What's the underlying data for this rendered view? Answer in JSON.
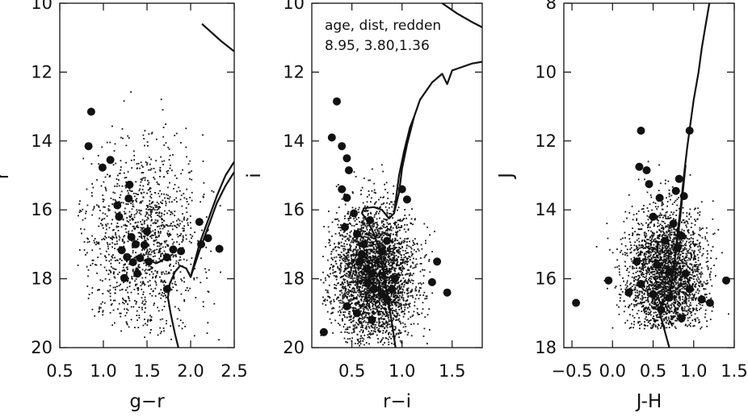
{
  "chart_data": [
    {
      "type": "scatter",
      "xlabel": "g−r",
      "ylabel": "r",
      "xlim": [
        0.5,
        2.5
      ],
      "ylim": [
        20,
        10
      ],
      "xticks": [
        "0.5",
        "1.0",
        "1.5",
        "2.0",
        "2.5"
      ],
      "xtick_values": [
        0.5,
        1.0,
        1.5,
        2.0,
        2.5
      ],
      "yticks": [
        "10",
        "12",
        "14",
        "16",
        "18",
        "20"
      ],
      "ytick_values": [
        10,
        12,
        14,
        16,
        18,
        20
      ],
      "annotation": [],
      "series": [
        {
          "kind": "members",
          "points": [
            [
              0.86,
              13.15
            ],
            [
              0.83,
              14.15
            ],
            [
              0.99,
              14.77
            ],
            [
              1.08,
              14.55
            ],
            [
              1.3,
              15.27
            ],
            [
              1.29,
              15.67
            ],
            [
              1.16,
              15.87
            ],
            [
              1.18,
              16.2
            ],
            [
              1.5,
              16.63
            ],
            [
              1.32,
              16.79
            ],
            [
              1.37,
              17.0
            ],
            [
              1.47,
              17.02
            ],
            [
              1.21,
              17.17
            ],
            [
              1.27,
              17.37
            ],
            [
              1.42,
              17.4
            ],
            [
              1.34,
              17.52
            ],
            [
              1.52,
              17.5
            ],
            [
              1.73,
              17.38
            ],
            [
              1.89,
              17.2
            ],
            [
              1.8,
              17.15
            ],
            [
              2.1,
              16.35
            ],
            [
              2.2,
              16.82
            ],
            [
              2.12,
              17.0
            ],
            [
              2.33,
              17.13
            ],
            [
              1.24,
              17.98
            ],
            [
              1.39,
              17.85
            ],
            [
              1.73,
              18.3
            ]
          ]
        },
        {
          "kind": "field",
          "stats": {
            "n": 1300,
            "x": [
              1.45,
              0.32
            ],
            "y": [
              16.9,
              1.35
            ],
            "xr": [
              0.7,
              2.4
            ],
            "yr": [
              12.5,
              19.8
            ],
            "seed": 11
          }
        }
      ],
      "isochrone": [
        [
          [
            1.93,
            20.7
          ],
          [
            1.88,
            20.2
          ],
          [
            1.82,
            19.6
          ],
          [
            1.77,
            19.0
          ],
          [
            1.74,
            18.55
          ],
          [
            1.76,
            18.15
          ],
          [
            1.82,
            17.8
          ],
          [
            1.88,
            17.62
          ],
          [
            1.95,
            17.7
          ],
          [
            2.0,
            17.95
          ],
          [
            2.1,
            17.0
          ],
          [
            2.2,
            16.3
          ],
          [
            2.3,
            15.6
          ],
          [
            2.4,
            15.0
          ],
          [
            2.5,
            14.6
          ]
        ],
        [
          [
            2.0,
            17.95
          ],
          [
            2.1,
            17.2
          ],
          [
            2.2,
            16.5
          ],
          [
            2.3,
            15.8
          ],
          [
            2.4,
            15.3
          ],
          [
            2.5,
            14.9
          ]
        ],
        [
          [
            1.55,
            17.48
          ],
          [
            1.6,
            17.55
          ],
          [
            1.65,
            17.5
          ],
          [
            1.72,
            17.38
          ]
        ],
        [
          [
            2.13,
            10.6
          ],
          [
            2.35,
            11.1
          ],
          [
            2.5,
            11.4
          ]
        ]
      ]
    },
    {
      "type": "scatter",
      "xlabel": "r−i",
      "ylabel": "i",
      "xlim": [
        0.1,
        1.8
      ],
      "ylim": [
        20,
        10
      ],
      "xticks": [
        "0.5",
        "1.0",
        "1.5"
      ],
      "xtick_values": [
        0.5,
        1.0,
        1.5
      ],
      "yticks": [
        "10",
        "12",
        "14",
        "16",
        "18",
        "20"
      ],
      "ytick_values": [
        10,
        12,
        14,
        16,
        18,
        20
      ],
      "annotation": [
        "age, dist, redden",
        "8.95, 3.80,1.36"
      ],
      "series": [
        {
          "kind": "members",
          "points": [
            [
              0.35,
              12.85
            ],
            [
              0.3,
              13.9
            ],
            [
              0.4,
              14.15
            ],
            [
              0.45,
              14.5
            ],
            [
              0.47,
              14.85
            ],
            [
              0.4,
              15.4
            ],
            [
              0.45,
              15.65
            ],
            [
              0.52,
              16.1
            ],
            [
              0.43,
              16.5
            ],
            [
              0.55,
              16.7
            ],
            [
              0.62,
              17.0
            ],
            [
              0.6,
              17.3
            ],
            [
              0.58,
              17.5
            ],
            [
              0.65,
              17.7
            ],
            [
              0.7,
              17.85
            ],
            [
              0.66,
              18.1
            ],
            [
              0.72,
              18.3
            ],
            [
              0.8,
              18.45
            ],
            [
              0.85,
              18.6
            ],
            [
              0.9,
              18.3
            ],
            [
              0.8,
              17.2
            ],
            [
              0.85,
              16.9
            ],
            [
              0.68,
              16.3
            ],
            [
              1.0,
              15.4
            ],
            [
              1.05,
              15.7
            ],
            [
              1.35,
              17.5
            ],
            [
              1.3,
              18.1
            ],
            [
              1.45,
              18.4
            ],
            [
              0.55,
              19.0
            ],
            [
              0.45,
              18.8
            ],
            [
              0.22,
              19.55
            ],
            [
              0.93,
              18.0
            ],
            [
              0.7,
              19.2
            ]
          ]
        },
        {
          "kind": "field",
          "stats": {
            "n": 3400,
            "x": [
              0.72,
              0.2
            ],
            "y": [
              17.9,
              0.95
            ],
            "xr": [
              0.18,
              1.6
            ],
            "yr": [
              13.0,
              19.95
            ],
            "seed": 23
          }
        }
      ],
      "isochrone": [
        [
          [
            0.97,
            20.7
          ],
          [
            0.94,
            20.1
          ],
          [
            0.9,
            19.3
          ],
          [
            0.86,
            18.6
          ],
          [
            0.82,
            17.9
          ],
          [
            0.78,
            17.2
          ],
          [
            0.72,
            16.7
          ],
          [
            0.66,
            16.35
          ],
          [
            0.6,
            16.1
          ],
          [
            0.62,
            15.95
          ],
          [
            0.72,
            15.92
          ],
          [
            0.8,
            16.0
          ],
          [
            0.87,
            16.25
          ],
          [
            0.92,
            16.1
          ],
          [
            0.97,
            15.5
          ],
          [
            1.0,
            14.8
          ],
          [
            1.05,
            14.1
          ],
          [
            1.12,
            13.3
          ],
          [
            1.18,
            12.8
          ],
          [
            1.3,
            12.3
          ],
          [
            1.4,
            12.05
          ],
          [
            1.45,
            12.35
          ],
          [
            1.5,
            11.95
          ],
          [
            1.6,
            11.85
          ],
          [
            1.7,
            11.75
          ],
          [
            1.8,
            11.7
          ]
        ],
        [
          [
            0.92,
            16.1
          ],
          [
            0.97,
            15.0
          ],
          [
            1.02,
            14.3
          ],
          [
            1.08,
            13.6
          ],
          [
            1.12,
            13.3
          ]
        ],
        [
          [
            1.4,
            10.0
          ],
          [
            1.55,
            10.3
          ],
          [
            1.7,
            10.55
          ],
          [
            1.8,
            10.7
          ]
        ]
      ]
    },
    {
      "type": "scatter",
      "xlabel": "J-H",
      "ylabel": "J",
      "xlim": [
        -0.6,
        1.5
      ],
      "ylim": [
        18,
        8
      ],
      "xticks": [
        "−0.5",
        "0.0",
        "0.5",
        "1.0",
        "1.5"
      ],
      "xtick_values": [
        -0.5,
        0.0,
        0.5,
        1.0,
        1.5
      ],
      "yticks": [
        "8",
        "10",
        "12",
        "14",
        "16",
        "18"
      ],
      "ytick_values": [
        8,
        10,
        12,
        14,
        16,
        18
      ],
      "annotation": [],
      "series": [
        {
          "kind": "members",
          "points": [
            [
              0.35,
              11.7
            ],
            [
              0.95,
              11.7
            ],
            [
              0.33,
              12.75
            ],
            [
              0.42,
              12.85
            ],
            [
              0.45,
              13.25
            ],
            [
              0.58,
              13.65
            ],
            [
              0.82,
              13.1
            ],
            [
              0.78,
              13.45
            ],
            [
              0.88,
              13.6
            ],
            [
              0.5,
              14.2
            ],
            [
              0.75,
              14.4
            ],
            [
              0.65,
              14.9
            ],
            [
              0.85,
              14.75
            ],
            [
              0.8,
              15.1
            ],
            [
              0.3,
              15.5
            ],
            [
              0.55,
              15.6
            ],
            [
              0.7,
              15.8
            ],
            [
              0.9,
              15.85
            ],
            [
              0.35,
              16.15
            ],
            [
              0.5,
              16.45
            ],
            [
              0.7,
              16.55
            ],
            [
              0.95,
              16.3
            ],
            [
              1.1,
              16.6
            ],
            [
              1.2,
              16.7
            ],
            [
              -0.05,
              16.05
            ],
            [
              -0.45,
              16.7
            ],
            [
              1.4,
              16.05
            ],
            [
              0.2,
              16.4
            ],
            [
              0.85,
              17.15
            ],
            [
              0.6,
              16.9
            ]
          ]
        },
        {
          "kind": "field",
          "stats": {
            "n": 2700,
            "x": [
              0.65,
              0.23
            ],
            "y": [
              15.9,
              0.95
            ],
            "xr": [
              -0.35,
              1.45
            ],
            "yr": [
              9.0,
              17.45
            ],
            "seed": 37
          }
        }
      ],
      "isochrone": [
        [
          [
            0.75,
            18.5
          ],
          [
            0.7,
            18.0
          ],
          [
            0.63,
            17.4
          ],
          [
            0.58,
            17.0
          ],
          [
            0.6,
            16.7
          ],
          [
            0.7,
            16.55
          ],
          [
            0.76,
            15.6
          ],
          [
            0.8,
            14.7
          ],
          [
            0.84,
            13.9
          ],
          [
            0.88,
            13.0
          ],
          [
            0.92,
            12.2
          ],
          [
            0.96,
            11.5
          ],
          [
            1.0,
            10.8
          ],
          [
            1.06,
            10.0
          ],
          [
            1.1,
            9.3
          ],
          [
            1.15,
            8.6
          ],
          [
            1.2,
            7.9
          ]
        ],
        [
          [
            0.7,
            16.55
          ],
          [
            0.78,
            15.2
          ],
          [
            0.83,
            14.3
          ],
          [
            0.87,
            13.4
          ],
          [
            0.9,
            12.7
          ]
        ]
      ]
    }
  ]
}
